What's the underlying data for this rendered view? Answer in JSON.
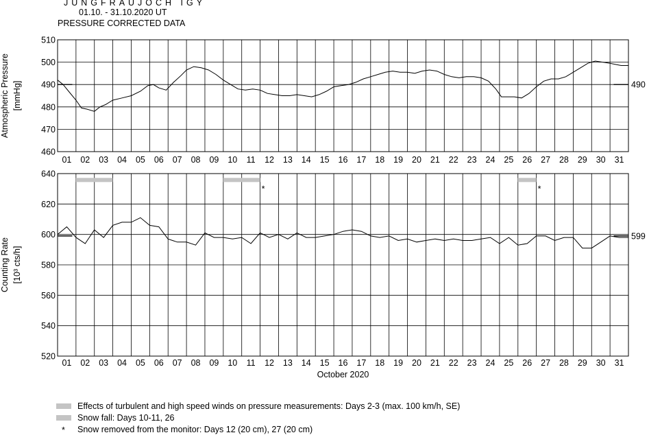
{
  "header": {
    "title": "JUNGFRAUJOCH IGY",
    "period": "01.10. - 31.10.2020  UT",
    "subtitle": "PRESSURE CORRECTED DATA"
  },
  "chart_data": [
    {
      "type": "line",
      "ylabel": "Atmospheric Pressure",
      "yunit": "[mmHg]",
      "ylim": [
        460,
        510
      ],
      "yticks": [
        460,
        470,
        480,
        490,
        500,
        510
      ],
      "xlim": [
        1,
        32
      ],
      "x_tick_labels": [
        "01",
        "02",
        "03",
        "04",
        "05",
        "06",
        "07",
        "08",
        "09",
        "10",
        "11",
        "12",
        "13",
        "14",
        "15",
        "16",
        "17",
        "18",
        "19",
        "20",
        "21",
        "22",
        "23",
        "24",
        "25",
        "26",
        "27",
        "28",
        "29",
        "30",
        "31"
      ],
      "grid": true,
      "reference_value": 490,
      "reference_label": "490",
      "series": [
        {
          "x": [
            1.0,
            1.3,
            1.6,
            2.0,
            2.3,
            2.6,
            3.0,
            3.3,
            3.6,
            4.0,
            4.5,
            5.0,
            5.5,
            5.9,
            6.2,
            6.5,
            6.9,
            7.3,
            7.7,
            8.0,
            8.4,
            8.8,
            9.2,
            9.6,
            10.0,
            10.4,
            10.8,
            11.2,
            11.6,
            12.0,
            12.4,
            12.8,
            13.2,
            13.6,
            14.0,
            14.4,
            14.8,
            15.2,
            15.6,
            16.0,
            16.4,
            16.8,
            17.2,
            17.6,
            18.0,
            18.4,
            18.8,
            19.2,
            19.6,
            20.0,
            20.4,
            20.8,
            21.2,
            21.6,
            22.0,
            22.4,
            22.8,
            23.2,
            23.6,
            24.0,
            24.4,
            24.8,
            25.1,
            25.4,
            25.8,
            26.2,
            26.6,
            27.0,
            27.4,
            27.8,
            28.2,
            28.6,
            29.0,
            29.4,
            29.8,
            30.2,
            30.6,
            31.0,
            31.3,
            31.6,
            32.0
          ],
          "y": [
            492,
            490,
            487,
            483,
            479.5,
            479,
            478,
            480,
            481,
            483,
            484,
            485,
            487,
            489.5,
            490,
            488.5,
            487.5,
            491,
            494,
            496.5,
            498,
            497.5,
            496.5,
            494.5,
            492,
            490,
            488,
            487.5,
            488,
            487.5,
            486,
            485.5,
            485,
            485,
            485.5,
            485,
            484.5,
            485.5,
            487,
            489,
            489.5,
            490,
            491,
            492.5,
            493.5,
            494.5,
            495.5,
            496,
            495.5,
            495.5,
            495,
            496,
            496.5,
            496,
            494.5,
            493.5,
            493,
            493.5,
            493.5,
            493,
            491.5,
            488,
            484.5,
            484.5,
            484.5,
            484,
            486,
            489,
            491.5,
            492.5,
            492.5,
            493.5,
            495.5,
            497.5,
            499.5,
            500.5,
            500,
            499.5,
            499,
            498.5,
            498.5
          ]
        }
      ]
    },
    {
      "type": "line",
      "ylabel": "Counting Rate",
      "yunit": "[10³ cts/h]",
      "xlabel": "October 2020",
      "ylim": [
        520,
        640
      ],
      "yticks": [
        520,
        540,
        560,
        580,
        600,
        620,
        640
      ],
      "xlim": [
        1,
        32
      ],
      "x_tick_labels": [
        "01",
        "02",
        "03",
        "04",
        "05",
        "06",
        "07",
        "08",
        "09",
        "10",
        "11",
        "12",
        "13",
        "14",
        "15",
        "16",
        "17",
        "18",
        "19",
        "20",
        "21",
        "22",
        "23",
        "24",
        "25",
        "26",
        "27",
        "28",
        "29",
        "30",
        "31"
      ],
      "grid": true,
      "reference_value": 599,
      "reference_label": "599",
      "markers": {
        "bars": [
          {
            "x_start": 2.0,
            "x_end": 4.0
          },
          {
            "x_start": 10.0,
            "x_end": 12.0
          },
          {
            "x_start": 26.0,
            "x_end": 27.0
          }
        ],
        "stars": [
          12.0,
          27.0
        ]
      },
      "series": [
        {
          "x": [
            1.0,
            1.5,
            2.0,
            2.5,
            3.0,
            3.5,
            4.0,
            4.5,
            5.0,
            5.5,
            6.0,
            6.5,
            7.0,
            7.5,
            8.0,
            8.5,
            9.0,
            9.5,
            10.0,
            10.5,
            11.0,
            11.5,
            12.0,
            12.5,
            13.0,
            13.5,
            14.0,
            14.5,
            15.0,
            15.5,
            16.0,
            16.5,
            17.0,
            17.5,
            18.0,
            18.5,
            19.0,
            19.5,
            20.0,
            20.5,
            21.0,
            21.5,
            22.0,
            22.5,
            23.0,
            23.5,
            24.0,
            24.5,
            25.0,
            25.5,
            26.0,
            26.5,
            27.0,
            27.5,
            28.0,
            28.5,
            29.0,
            29.5,
            30.0,
            30.5,
            31.0,
            31.5,
            32.0
          ],
          "y": [
            600,
            605,
            598,
            594,
            603,
            598,
            606,
            608,
            608,
            611,
            606,
            605,
            597,
            595,
            595,
            593,
            601,
            598,
            598,
            597,
            598,
            594,
            601,
            598,
            600,
            597,
            601,
            598,
            598,
            599,
            600,
            602,
            603,
            602,
            599,
            598,
            599,
            596,
            597,
            595,
            596,
            597,
            596,
            597,
            596,
            596,
            597,
            598,
            594,
            598,
            593,
            594,
            599,
            599,
            596,
            598,
            598,
            591,
            591,
            595,
            599,
            598,
            598
          ]
        }
      ]
    }
  ],
  "legend": {
    "items": [
      {
        "kind": "bar",
        "text": "Effects of turbulent and high speed winds on pressure measurements: Days 2-3 (max. 100 km/h, SE)"
      },
      {
        "kind": "bar",
        "text": "Snow fall: Days 10-11, 26"
      },
      {
        "kind": "star",
        "symbol": "*",
        "text": "Snow removed from the monitor: Days 12 (20 cm), 27 (20 cm)"
      }
    ]
  },
  "colors": {
    "line": "#000000",
    "grid": "#000000",
    "marker_bar": "#c4c4c4",
    "background": "#ffffff"
  }
}
